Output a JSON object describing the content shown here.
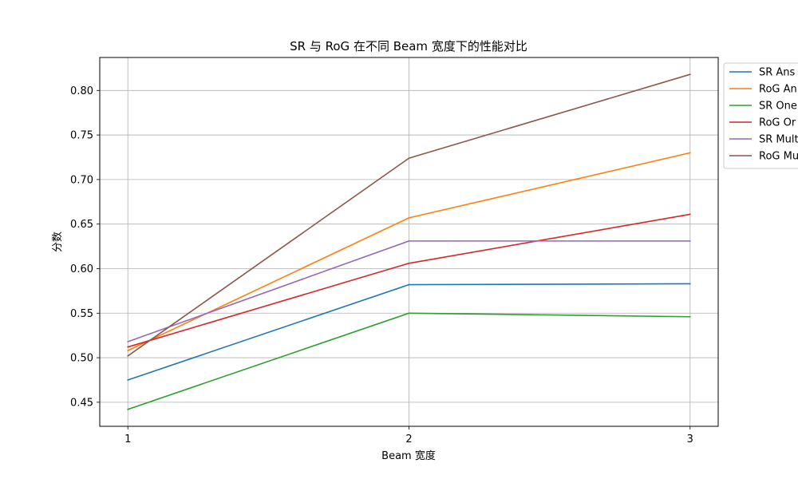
{
  "chart_data": {
    "type": "line",
    "title": "SR 与 RoG 在不同 Beam 宽度下的性能对比",
    "xlabel": "Beam 宽度",
    "ylabel": "分数",
    "x": [
      1,
      2,
      3
    ],
    "x_ticks": [
      "1",
      "2",
      "3"
    ],
    "xlim": [
      0.9,
      3.1
    ],
    "ylim": [
      0.423,
      0.837
    ],
    "y_ticks": [
      "0.45",
      "0.50",
      "0.55",
      "0.60",
      "0.65",
      "0.70",
      "0.75",
      "0.80"
    ],
    "grid": true,
    "legend_position": "outside-right-top",
    "series": [
      {
        "name": "SR Ans",
        "color": "#1f77b4",
        "values": [
          0.475,
          0.582,
          0.583
        ]
      },
      {
        "name": "RoG An",
        "color": "#ff7f0e",
        "values": [
          0.508,
          0.657,
          0.73
        ]
      },
      {
        "name": "SR One",
        "color": "#2ca02c",
        "values": [
          0.442,
          0.55,
          0.546
        ]
      },
      {
        "name": "RoG Or",
        "color": "#d62728",
        "values": [
          0.512,
          0.606,
          0.661
        ]
      },
      {
        "name": "SR Mult",
        "color": "#9467bd",
        "values": [
          0.518,
          0.631,
          0.631
        ]
      },
      {
        "name": "RoG Mu",
        "color": "#8c564b",
        "values": [
          0.502,
          0.724,
          0.818
        ]
      }
    ]
  }
}
